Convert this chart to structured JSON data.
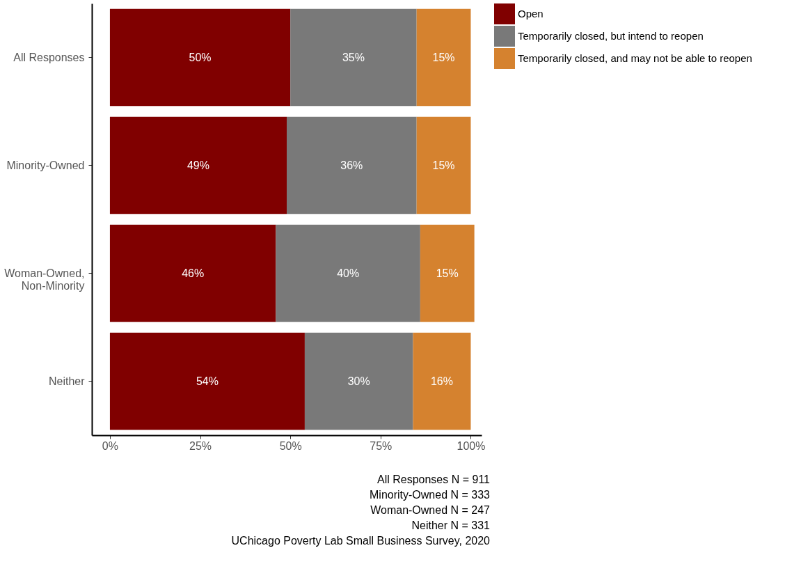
{
  "chart_data": {
    "type": "bar",
    "orientation": "horizontal",
    "stacked": true,
    "categories": [
      "All Responses",
      "Minority-Owned",
      "Woman-Owned, Non-Minority",
      "Neither"
    ],
    "series": [
      {
        "name": "Open",
        "color": "#800000",
        "values": [
          50,
          49,
          46,
          54
        ],
        "value_labels": [
          "50%",
          "49%",
          "46%",
          "54%"
        ]
      },
      {
        "name": "Temporarily closed, but intend to reopen",
        "color": "#797979",
        "values": [
          35,
          36,
          40,
          30
        ],
        "value_labels": [
          "35%",
          "36%",
          "40%",
          "30%"
        ]
      },
      {
        "name": "Temporarily closed, and may not be able to reopen",
        "color": "#d5822f",
        "values": [
          15,
          15,
          15,
          16
        ],
        "value_labels": [
          "15%",
          "15%",
          "15%",
          "16%"
        ]
      }
    ],
    "xlim": [
      -5,
      103
    ],
    "xticks": [
      {
        "value": 0,
        "label": "0%"
      },
      {
        "value": 25,
        "label": "25%"
      },
      {
        "value": 50,
        "label": "50%"
      },
      {
        "value": 75,
        "label": "75%"
      },
      {
        "value": 100,
        "label": "100%"
      }
    ],
    "grid": false,
    "legend": "right",
    "annotations": [
      "All Responses N = 911",
      "Minority-Owned N = 333",
      "Woman-Owned N = 247",
      "Neither N = 331",
      "UChicago Poverty Lab Small Business Survey, 2020"
    ]
  }
}
